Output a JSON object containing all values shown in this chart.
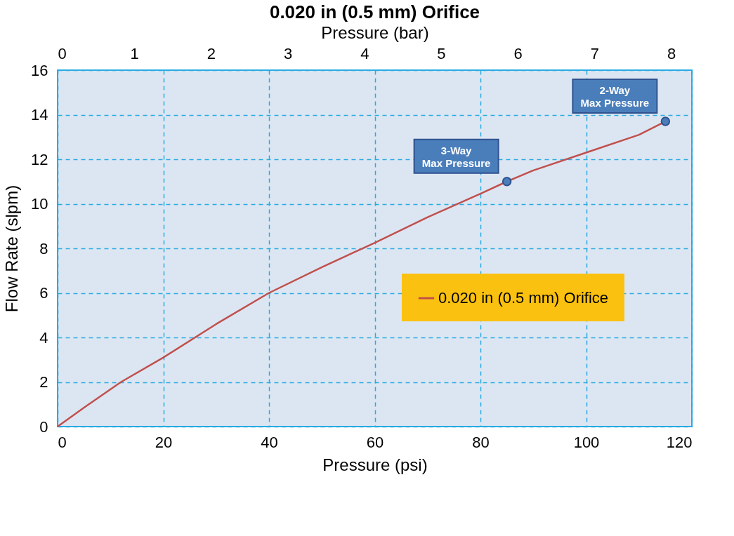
{
  "chart_data": {
    "type": "line",
    "title": "0.020 in (0.5 mm) Orifice",
    "xlabel": "Pressure (psi)",
    "ylabel": "Flow Rate (slpm)",
    "x2label": "Pressure (bar)",
    "xlim": [
      0,
      120
    ],
    "xticks": [
      0,
      20,
      40,
      60,
      80,
      100,
      120
    ],
    "ylim": [
      0,
      16
    ],
    "yticks": [
      0,
      2,
      4,
      6,
      8,
      10,
      12,
      14,
      16
    ],
    "x2lim": [
      0,
      8.27
    ],
    "x2ticks": [
      0,
      1,
      2,
      3,
      4,
      5,
      6,
      7,
      8
    ],
    "series": [
      {
        "name": "0.020 in (0.5 mm) Orifice",
        "color": "#c0504d",
        "x": [
          0,
          5,
          12,
          20,
          30,
          40,
          50,
          60,
          70,
          80,
          85,
          90,
          100,
          110,
          115
        ],
        "values": [
          0,
          0.85,
          2.0,
          3.1,
          4.6,
          6.0,
          7.15,
          8.25,
          9.4,
          10.45,
          11.0,
          11.5,
          12.3,
          13.1,
          13.7
        ]
      }
    ],
    "annotations": [
      {
        "text": "3-Way\nMax Pressure",
        "x": 85,
        "y": 11.0
      },
      {
        "text": "2-Way\nMax Pressure",
        "x": 115,
        "y": 13.7
      }
    ],
    "grid": true,
    "legend": "right",
    "marker": "none",
    "line_style": "solid"
  }
}
